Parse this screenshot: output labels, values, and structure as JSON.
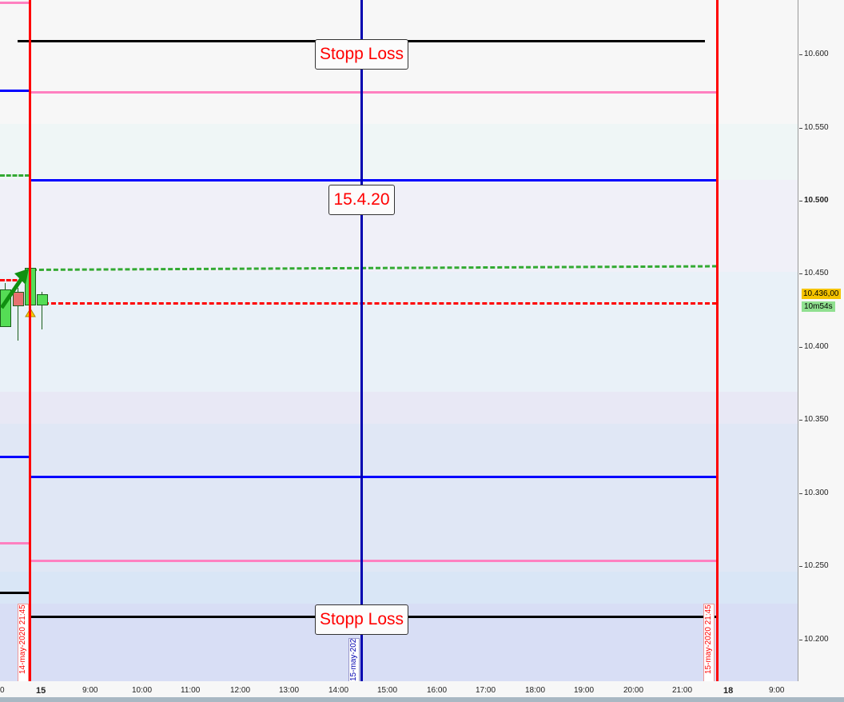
{
  "chart_data": {
    "type": "candlestick",
    "price_axis": {
      "labels": [
        "10.600",
        "10.550",
        "10.500",
        "10.450",
        "10.400",
        "10.350",
        "10.300",
        "10.250",
        "10.200"
      ],
      "bold": "10.500",
      "range": [
        10.17,
        10.64
      ]
    },
    "time_axis": {
      "labels": [
        "0",
        "15",
        "9:00",
        "10:00",
        "11:00",
        "12:00",
        "13:00",
        "14:00",
        "15:00",
        "16:00",
        "17:00",
        "18:00",
        "19:00",
        "20:00",
        "21:00",
        "18",
        "9:00"
      ],
      "bold": [
        "15",
        "18"
      ]
    },
    "current_price": "10.436,00",
    "countdown": "10m54s",
    "annotations": {
      "stop_loss_top": "Stopp Loss",
      "date_label": "15.4.20",
      "stop_loss_bottom": "Stopp Loss"
    },
    "vertical_lines": [
      {
        "label": "14-may-2020 21:45",
        "color": "#ff0000"
      },
      {
        "label": "15-may-202",
        "color": "#0000b0"
      },
      {
        "label": "15-may-2020 21:45",
        "color": "#ff0000"
      }
    ],
    "colors": {
      "stop_loss": "#000000",
      "pink_level": "#ff80c0",
      "blue_level": "#0000ff",
      "green_dotted": "#33aa33",
      "red_dotted": "#ff0000",
      "bull_candle": "#55dd55",
      "bear_candle": "#e87070"
    }
  }
}
